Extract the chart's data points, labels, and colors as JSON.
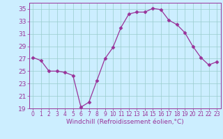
{
  "x": [
    0,
    1,
    2,
    3,
    4,
    5,
    6,
    7,
    8,
    9,
    10,
    11,
    12,
    13,
    14,
    15,
    16,
    17,
    18,
    19,
    20,
    21,
    22,
    23
  ],
  "y": [
    27.2,
    26.7,
    25.0,
    25.0,
    24.8,
    24.3,
    19.2,
    20.0,
    23.5,
    27.0,
    28.8,
    32.0,
    34.2,
    34.5,
    34.5,
    35.1,
    34.9,
    33.2,
    32.5,
    31.2,
    29.0,
    27.2,
    26.0,
    26.5
  ],
  "line_color": "#993399",
  "marker": "D",
  "marker_size": 2.5,
  "bg_color": "#cceeff",
  "grid_color": "#99cccc",
  "xlim": [
    -0.5,
    23.5
  ],
  "ylim": [
    19,
    36
  ],
  "yticks": [
    19,
    21,
    23,
    25,
    27,
    29,
    31,
    33,
    35
  ],
  "xtick_labels": [
    "0",
    "1",
    "2",
    "3",
    "4",
    "5",
    "6",
    "7",
    "8",
    "9",
    "10",
    "11",
    "12",
    "13",
    "14",
    "15",
    "16",
    "17",
    "18",
    "19",
    "20",
    "21",
    "22",
    "23"
  ],
  "xlabel": "Windchill (Refroidissement éolien,°C)",
  "label_color": "#993399",
  "tick_color": "#993399",
  "axis_color": "#993399",
  "xlabel_fontsize": 6.5,
  "ytick_fontsize": 6.5,
  "xtick_fontsize": 5.5
}
